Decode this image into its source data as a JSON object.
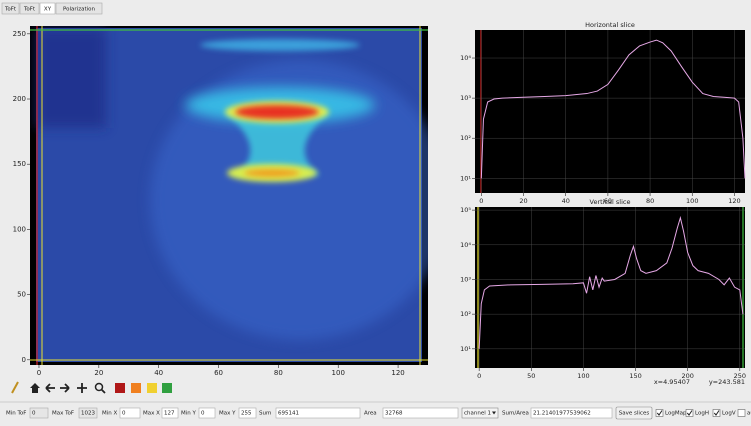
{
  "tabs": [
    "ToFt",
    "ToFt",
    "XY",
    "Polarization"
  ],
  "heatmap": {
    "xlim": [
      -3,
      130
    ],
    "ylim": [
      -4,
      256
    ],
    "xticks": [
      0,
      20,
      40,
      60,
      80,
      100,
      120
    ],
    "yticks": [
      0,
      50,
      100,
      150,
      200,
      250
    ]
  },
  "horizontal_slice": {
    "title": "Horizontal slice",
    "log_y": true,
    "color": "#e6a8e6",
    "xlim": [
      -3,
      125
    ],
    "ylim": [
      4.3,
      50000
    ],
    "xticks": [
      0,
      20,
      40,
      60,
      80,
      100,
      120
    ],
    "yticks": [
      {
        "value": 10,
        "label": "10¹"
      },
      {
        "value": 100,
        "label": "10²"
      },
      {
        "value": 1000,
        "label": "10³"
      },
      {
        "value": 10000,
        "label": "10⁴"
      }
    ],
    "x": [
      0,
      1,
      3,
      6,
      10,
      20,
      30,
      40,
      50,
      55,
      60,
      65,
      70,
      75,
      80,
      83,
      86,
      90,
      95,
      100,
      105,
      110,
      115,
      120,
      122,
      124,
      125
    ],
    "values": [
      10,
      300,
      800,
      950,
      1000,
      1050,
      1100,
      1150,
      1300,
      1500,
      2200,
      5000,
      12000,
      20000,
      25000,
      28000,
      24000,
      15000,
      6000,
      2500,
      1300,
      1100,
      1050,
      1000,
      800,
      100,
      10
    ]
  },
  "vertical_slice": {
    "title": "Vertical slice",
    "log_y": true,
    "color": "#e6a8e6",
    "xlim": [
      -4,
      255
    ],
    "ylim": [
      2.8,
      123000
    ],
    "xticks": [
      0,
      50,
      100,
      150,
      200,
      250
    ],
    "yticks": [
      {
        "value": 10,
        "label": "10¹"
      },
      {
        "value": 100,
        "label": "10²"
      },
      {
        "value": 1000,
        "label": "10³"
      },
      {
        "value": 10000,
        "label": "10⁴"
      },
      {
        "value": 100000,
        "label": "10⁵"
      }
    ],
    "x": [
      0,
      2,
      5,
      10,
      30,
      60,
      90,
      100,
      103,
      106,
      109,
      112,
      115,
      118,
      120,
      130,
      140,
      145,
      148,
      151,
      155,
      160,
      170,
      180,
      185,
      190,
      193,
      196,
      200,
      205,
      210,
      220,
      230,
      235,
      240,
      245,
      250,
      253
    ],
    "values": [
      10,
      200,
      500,
      650,
      700,
      720,
      750,
      800,
      400,
      1200,
      500,
      1300,
      600,
      1100,
      900,
      1000,
      1500,
      5000,
      9000,
      4000,
      1800,
      1500,
      1800,
      3000,
      8000,
      30000,
      60000,
      25000,
      6000,
      2500,
      1800,
      1500,
      1000,
      700,
      1100,
      600,
      500,
      100
    ]
  },
  "cursor": {
    "x": "x=4.95407",
    "y": "y=243.581"
  },
  "controls": {
    "fields": [
      {
        "label": "Min ToF",
        "value": "0"
      },
      {
        "label": "Max ToF",
        "value": "1023"
      },
      {
        "label": "Min X",
        "value": "0"
      },
      {
        "label": "Max X",
        "value": "127"
      },
      {
        "label": "Min Y",
        "value": "0"
      },
      {
        "label": "Max Y",
        "value": "255"
      },
      {
        "label": "Sum",
        "value": "695141"
      },
      {
        "label": "Area",
        "value": "32768"
      }
    ],
    "channel": "channel 1",
    "ratio": {
      "label": "Sum/Area",
      "value": "21.21401977539062"
    },
    "button": "Save slices",
    "checkboxes": [
      "LogMap",
      "LogH",
      "LogV",
      "au"
    ]
  }
}
